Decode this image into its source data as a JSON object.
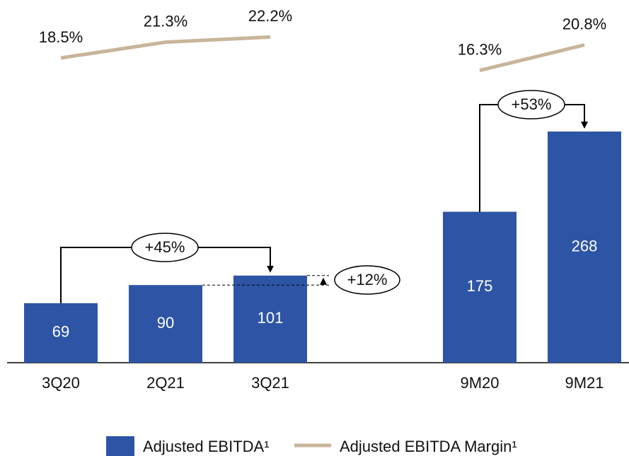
{
  "chart_data": {
    "type": "bar",
    "categories": [
      "3Q20",
      "2Q21",
      "3Q21",
      null,
      "9M20",
      "9M21"
    ],
    "series": [
      {
        "name": "Adjusted EBITDA¹",
        "type": "bar",
        "color": "#2e55a5",
        "values": [
          69,
          90,
          101,
          null,
          175,
          268
        ]
      },
      {
        "name": "Adjusted EBITDA Margin¹",
        "type": "line",
        "color": "#c8b59a",
        "values": [
          18.5,
          21.3,
          22.2,
          null,
          16.3,
          20.8
        ],
        "value_labels": [
          "18.5%",
          "21.3%",
          "22.2%",
          null,
          "16.3%",
          "20.8%"
        ]
      }
    ],
    "annotations": [
      "+45%",
      "+12%",
      "+53%"
    ]
  }
}
